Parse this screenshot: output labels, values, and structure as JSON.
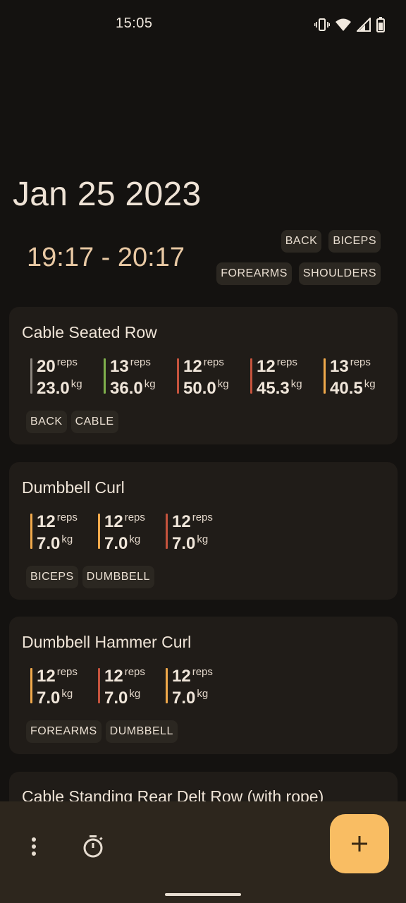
{
  "status": {
    "time": "15:05",
    "icons": [
      "vibrate-icon",
      "wifi-icon",
      "signal-icon",
      "battery-icon"
    ]
  },
  "session": {
    "date": "Jan 25 2023",
    "start": "19:17",
    "separator": "-",
    "end": "20:17",
    "tags": [
      "BACK",
      "BICEPS",
      "FOREARMS",
      "SHOULDERS"
    ]
  },
  "units": {
    "reps": "reps",
    "weight": "kg"
  },
  "colors": {
    "gray": "#8a847d",
    "green": "#7fb04c",
    "red": "#c5533d",
    "orange": "#f0a94b",
    "accent": "#f9bd63"
  },
  "exercises": [
    {
      "name": "Cable Seated Row",
      "sets": [
        {
          "reps": "20",
          "weight": "23.0",
          "color": "#8a847d"
        },
        {
          "reps": "13",
          "weight": "36.0",
          "color": "#7fb04c"
        },
        {
          "reps": "12",
          "weight": "50.0",
          "color": "#c5533d"
        },
        {
          "reps": "12",
          "weight": "45.3",
          "color": "#c5533d"
        },
        {
          "reps": "13",
          "weight": "40.5",
          "color": "#f0a94b"
        }
      ],
      "tags": [
        "BACK",
        "CABLE"
      ]
    },
    {
      "name": "Dumbbell Curl",
      "sets": [
        {
          "reps": "12",
          "weight": "7.0",
          "color": "#f0a94b"
        },
        {
          "reps": "12",
          "weight": "7.0",
          "color": "#f0a94b"
        },
        {
          "reps": "12",
          "weight": "7.0",
          "color": "#c5533d"
        }
      ],
      "tags": [
        "BICEPS",
        "DUMBBELL"
      ]
    },
    {
      "name": "Dumbbell Hammer Curl",
      "sets": [
        {
          "reps": "12",
          "weight": "7.0",
          "color": "#f0a94b"
        },
        {
          "reps": "12",
          "weight": "7.0",
          "color": "#c5533d"
        },
        {
          "reps": "12",
          "weight": "7.0",
          "color": "#f0a94b"
        }
      ],
      "tags": [
        "FOREARMS",
        "DUMBBELL"
      ]
    },
    {
      "name": "Cable Standing Rear Delt Row (with rope)",
      "sets": [],
      "tags": []
    }
  ],
  "bottom": {
    "icons": [
      "more-vert-icon",
      "timer-icon",
      "plus-icon"
    ]
  }
}
